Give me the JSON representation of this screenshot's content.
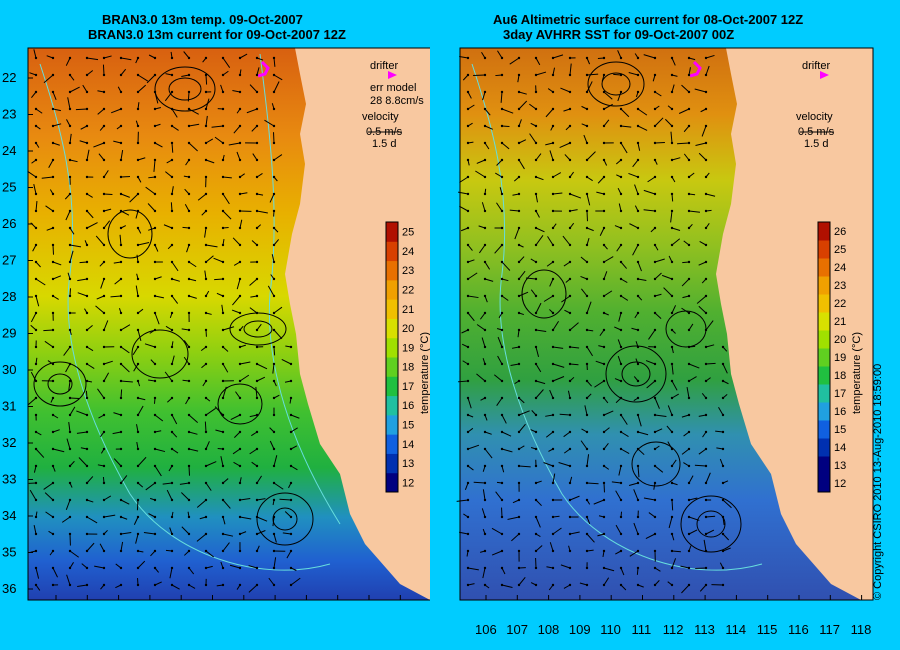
{
  "left_panel": {
    "title_line1": "BRAN3.0 13m temp. 09-Oct-2007",
    "title_line2": "BRAN3.0 13m current for 09-Oct-2007 12Z",
    "legend": {
      "drifter": "drifter",
      "err_model": "err model",
      "err_value": "28 8.8cm/s",
      "velocity": "velocity",
      "velocity_scale": "0.5 m/s",
      "velocity_days": "1.5 d"
    },
    "colorbar": {
      "label": "temperature (°C)",
      "ticks": [
        "12",
        "13",
        "14",
        "15",
        "16",
        "17",
        "18",
        "19",
        "20",
        "21",
        "22",
        "23",
        "24",
        "25"
      ]
    }
  },
  "right_panel": {
    "title_line1": "Au6 Altimetric surface current for 08-Oct-2007 12Z",
    "title_line2": "3day AVHRR SST for 09-Oct-2007 00Z",
    "legend": {
      "drifter": "drifter",
      "velocity": "velocity",
      "velocity_scale": "0.5 m/s",
      "velocity_days": "1.5 d"
    },
    "colorbar": {
      "label": "temperature (°C)",
      "ticks": [
        "12",
        "13",
        "14",
        "15",
        "16",
        "17",
        "18",
        "19",
        "20",
        "21",
        "22",
        "23",
        "24",
        "25",
        "26"
      ]
    }
  },
  "axes": {
    "lat_ticks": [
      "22",
      "23",
      "24",
      "25",
      "26",
      "27",
      "28",
      "29",
      "30",
      "31",
      "32",
      "33",
      "34",
      "35",
      "36"
    ],
    "lon_ticks": [
      "106",
      "107",
      "108",
      "109",
      "110",
      "111",
      "112",
      "113",
      "114",
      "115",
      "116",
      "117",
      "118"
    ]
  },
  "colors": {
    "background": "#00ccff",
    "land": "#f8c8a0",
    "drifter": "#ff00ff",
    "contour": "#66dddd"
  },
  "copyright": "© Copyright CSIRO 2010  13-Aug-2010 18:59:00"
}
